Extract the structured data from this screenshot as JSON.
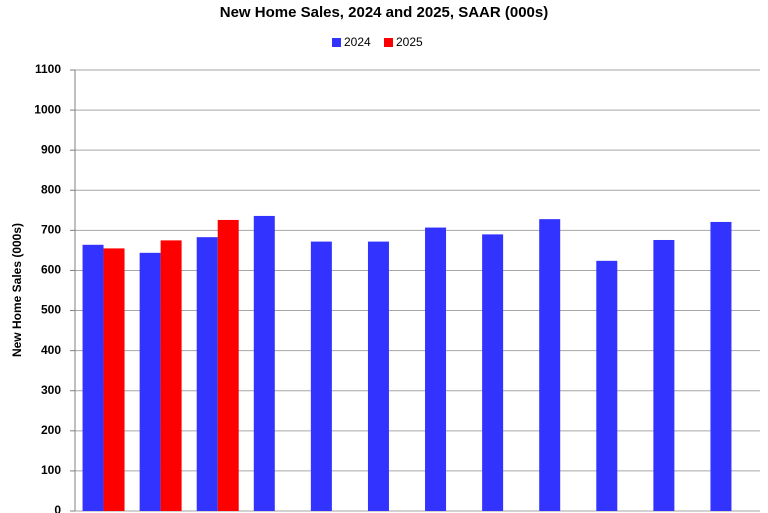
{
  "chart_data": {
    "type": "bar",
    "title": "New Home Sales,  2024 and 2025, SAAR (000s)",
    "y_label": "New Home Sales (000s)",
    "categories": [
      null,
      null,
      null,
      null,
      null,
      null,
      null,
      null,
      null,
      null,
      null,
      null
    ],
    "series": [
      {
        "name": "2024",
        "color": "#3333ff",
        "values": [
          664,
          644,
          683,
          736,
          672,
          672,
          707,
          690,
          728,
          624,
          676,
          721
        ]
      },
      {
        "name": "2025",
        "color": "#ff0000",
        "values": [
          655,
          675,
          726,
          null,
          null,
          null,
          null,
          null,
          null,
          null,
          null,
          null
        ]
      }
    ],
    "ylim": [
      0,
      1100
    ],
    "yticks": [
      0,
      100,
      200,
      300,
      400,
      500,
      600,
      700,
      800,
      900,
      1000,
      1100
    ],
    "grid": true
  }
}
